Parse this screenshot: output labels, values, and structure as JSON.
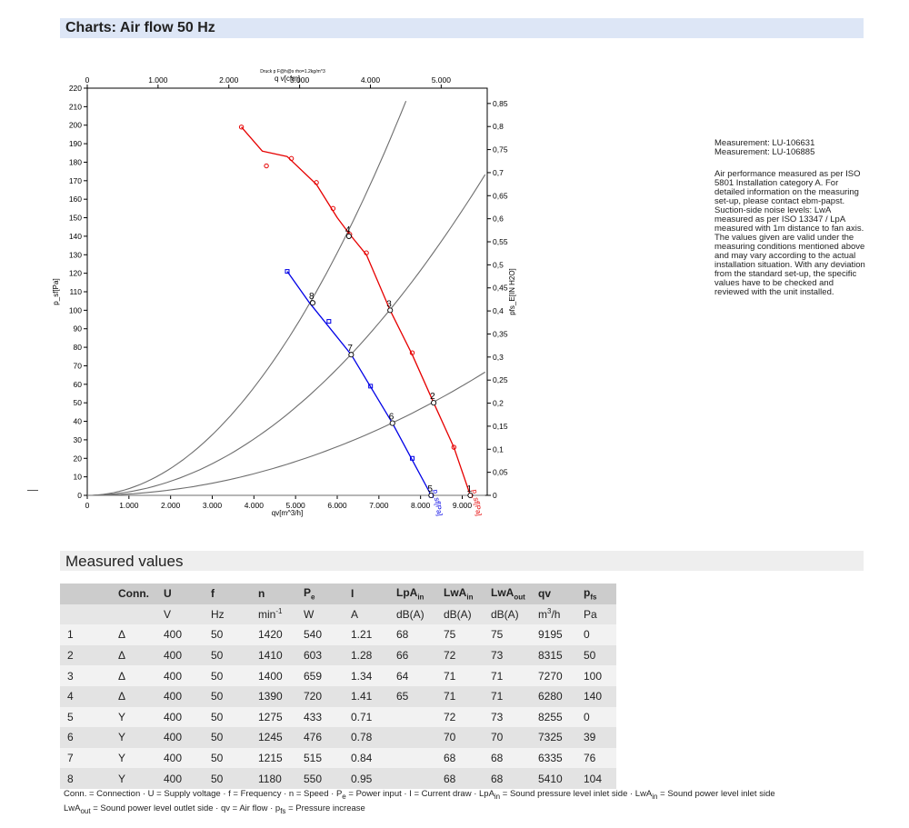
{
  "header": {
    "charts_title": "Charts: Air flow 50 Hz",
    "measured_title": "Measured values"
  },
  "side": {
    "measurement_1": "Measurement: LU-106631",
    "measurement_2": "Measurement: LU-106885",
    "description": "Air performance measured as per ISO 5801 Installation category A. For detailed information on the measuring set-up, please contact ebm-papst. Suction-side noise levels: LwA measured as per ISO 13347 / LpA measured with 1m distance to fan axis. The values given are valid under the measuring conditions mentioned above and may vary according to the actual installation situation. With any deviation from the standard set-up, the specific values have to be checked and reviewed with the unit installed."
  },
  "chart_data": {
    "type": "line",
    "top_note": "Druck p F@h@s rho=1.2kg/m^3",
    "x_top_label": "q v[cfm]",
    "x_bottom_label": "qv[m^3/h]",
    "y_left_label": "p_sf[Pa]",
    "y_right_label": "pfs_E[IN H2O]",
    "xlim": [
      0,
      9600
    ],
    "ylim": [
      0,
      220
    ],
    "x_ticks": [
      "0",
      "1.000",
      "2.000",
      "3.000",
      "4.000",
      "5.000",
      "6.000",
      "7.000",
      "8.000",
      "9.000"
    ],
    "x_top_ticks": [
      "0",
      "1.000",
      "2.000",
      "3.000",
      "4.000",
      "5.000"
    ],
    "y_ticks": [
      "0",
      "10",
      "20",
      "30",
      "40",
      "50",
      "60",
      "70",
      "80",
      "90",
      "100",
      "110",
      "120",
      "130",
      "140",
      "150",
      "160",
      "170",
      "180",
      "190",
      "200",
      "210",
      "220"
    ],
    "y_right_ticks": [
      "0",
      "0,05",
      "0,1",
      "0,15",
      "0,2",
      "0,25",
      "0,3",
      "0,35",
      "0,4",
      "0,45",
      "0,5",
      "0,55",
      "0,6",
      "0,65",
      "0,7",
      "0,75",
      "0,8",
      "0,85"
    ],
    "grid": false,
    "series": [
      {
        "label": "p_sf[Pa]",
        "color": "#e60000",
        "curve": [
          [
            3700,
            199
          ],
          [
            4200,
            186
          ],
          [
            4800,
            183
          ],
          [
            5500,
            168
          ],
          [
            6000,
            150
          ],
          [
            6300,
            141
          ],
          [
            6700,
            130
          ],
          [
            7270,
            100
          ],
          [
            7800,
            76
          ],
          [
            8315,
            50
          ],
          [
            8800,
            26
          ],
          [
            9195,
            0
          ]
        ],
        "markers": [
          [
            3700,
            199
          ],
          [
            4300,
            178
          ],
          [
            4900,
            182
          ],
          [
            5500,
            169
          ],
          [
            5900,
            155
          ],
          [
            6300,
            141
          ],
          [
            6700,
            131
          ],
          [
            7270,
            100
          ],
          [
            7800,
            77
          ],
          [
            8315,
            50
          ],
          [
            8800,
            26
          ],
          [
            9195,
            0
          ]
        ],
        "points": [
          {
            "n": "1",
            "x": 9195,
            "y": 0
          },
          {
            "n": "2",
            "x": 8315,
            "y": 50
          },
          {
            "n": "3",
            "x": 7270,
            "y": 100
          },
          {
            "n": "4",
            "x": 6280,
            "y": 140
          }
        ]
      },
      {
        "label": "p_sf[Pa]",
        "color": "#0000e6",
        "curve": [
          [
            4800,
            121
          ],
          [
            5335,
            104
          ],
          [
            6335,
            76
          ],
          [
            7325,
            39
          ],
          [
            8255,
            0
          ]
        ],
        "markers": [
          [
            4800,
            121
          ],
          [
            5800,
            94
          ],
          [
            6800,
            59
          ],
          [
            7800,
            20
          ],
          [
            8255,
            0
          ]
        ],
        "points": [
          {
            "n": "5",
            "x": 8255,
            "y": 0
          },
          {
            "n": "6",
            "x": 7325,
            "y": 39
          },
          {
            "n": "7",
            "x": 6335,
            "y": 76
          },
          {
            "n": "8",
            "x": 5410,
            "y": 104
          }
        ]
      }
    ],
    "system_curves": [
      {
        "k": 3.64e-06,
        "x_max": 7650
      },
      {
        "k": 1.9e-06,
        "x_max": 9550
      },
      {
        "k": 7.3e-07,
        "x_max": 9550
      },
      {
        "k": 0.0,
        "x_max": 9550
      }
    ]
  },
  "table": {
    "headers": [
      "",
      "Conn.",
      "U",
      "f",
      "n",
      "P",
      "I",
      "LpA",
      "LwA",
      "LwA",
      "qv",
      "p"
    ],
    "header_subs": [
      "",
      "",
      "",
      "",
      "",
      "e",
      "",
      "in",
      "in",
      "out",
      "",
      "fs"
    ],
    "units": [
      "",
      "",
      "V",
      "Hz",
      "min",
      "W",
      "A",
      "dB(A)",
      "dB(A)",
      "dB(A)",
      "m",
      "Pa"
    ],
    "unit_sups": [
      "",
      "",
      "",
      "",
      "-1",
      "",
      "",
      "",
      "",
      "",
      "3",
      ""
    ],
    "unit_tail": [
      "",
      "",
      "",
      "",
      "",
      "",
      "",
      "",
      "",
      "",
      "/h",
      ""
    ],
    "rows": [
      [
        "1",
        "Δ",
        "400",
        "50",
        "1420",
        "540",
        "1.21",
        "68",
        "75",
        "75",
        "9195",
        "0"
      ],
      [
        "2",
        "Δ",
        "400",
        "50",
        "1410",
        "603",
        "1.28",
        "66",
        "72",
        "73",
        "8315",
        "50"
      ],
      [
        "3",
        "Δ",
        "400",
        "50",
        "1400",
        "659",
        "1.34",
        "64",
        "71",
        "71",
        "7270",
        "100"
      ],
      [
        "4",
        "Δ",
        "400",
        "50",
        "1390",
        "720",
        "1.41",
        "65",
        "71",
        "71",
        "6280",
        "140"
      ],
      [
        "5",
        "Y",
        "400",
        "50",
        "1275",
        "433",
        "0.71",
        "",
        "72",
        "73",
        "8255",
        "0"
      ],
      [
        "6",
        "Y",
        "400",
        "50",
        "1245",
        "476",
        "0.78",
        "",
        "70",
        "70",
        "7325",
        "39"
      ],
      [
        "7",
        "Y",
        "400",
        "50",
        "1215",
        "515",
        "0.84",
        "",
        "68",
        "68",
        "6335",
        "76"
      ],
      [
        "8",
        "Y",
        "400",
        "50",
        "1180",
        "550",
        "0.95",
        "",
        "68",
        "68",
        "5410",
        "104"
      ]
    ]
  },
  "footnote": {
    "line1": "Conn. = Connection · U = Supply voltage · f = Frequency · n = Speed · Pe = Power input · I = Current draw · LpAin = Sound pressure level inlet side · LwAin = Sound power level inlet side",
    "line2": "LwAout = Sound power level outlet side · qv = Air flow · pfs = Pressure increase"
  }
}
